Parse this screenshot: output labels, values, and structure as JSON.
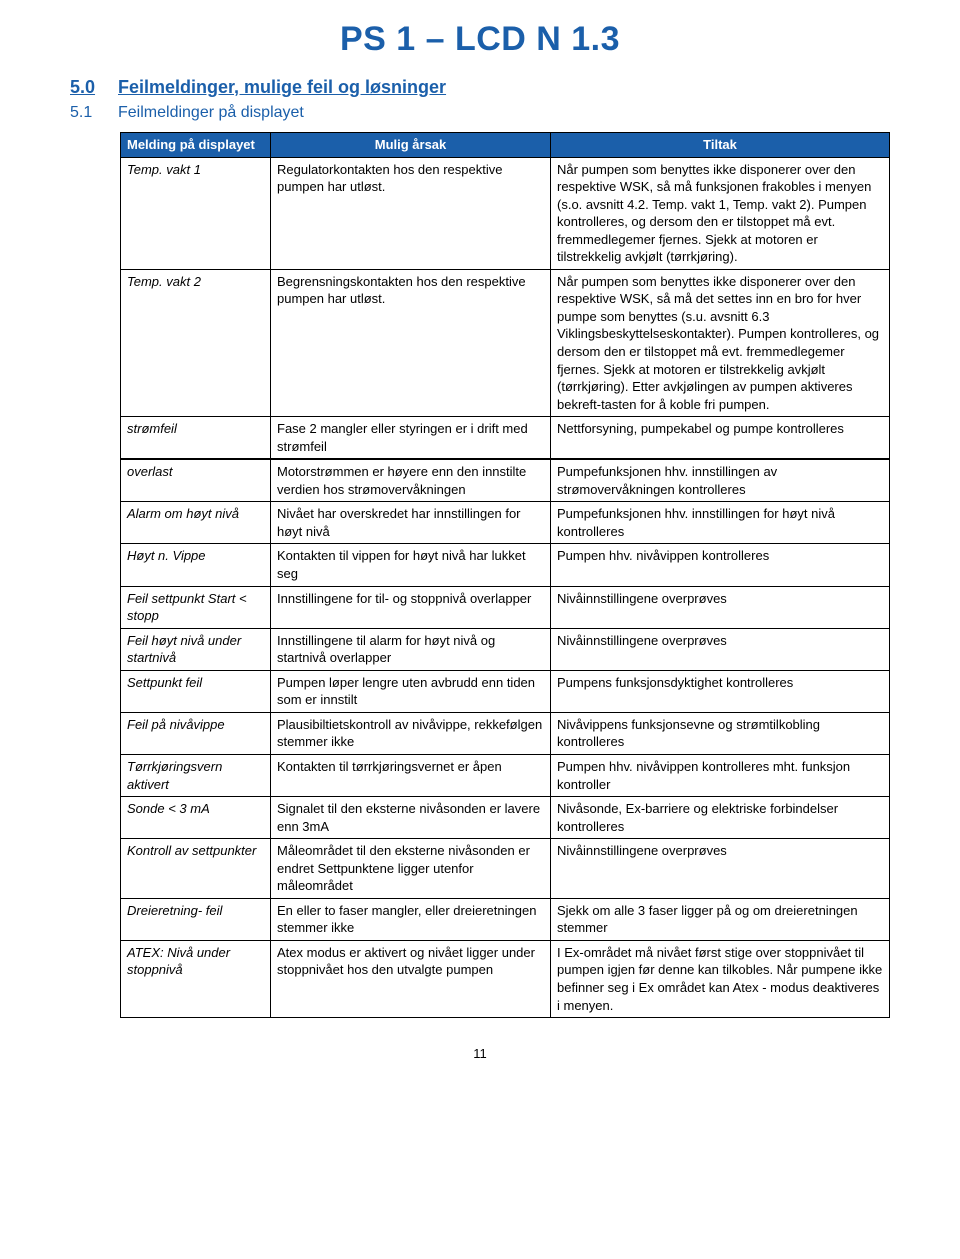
{
  "title": "PS 1 – LCD N  1.3",
  "section": {
    "num": "5.0",
    "text": "Feilmeldinger, mulige feil og løsninger"
  },
  "subsection": {
    "num": "5.1",
    "text": "Feilmeldinger på displayet"
  },
  "columns": {
    "melding": "Melding på displayet",
    "arsak": "Mulig årsak",
    "tiltak": "Tiltak"
  },
  "rows": [
    {
      "m": "Temp. vakt 1",
      "a": "Regulatorkontakten hos den respektive pumpen har utløst.",
      "t": "Når pumpen som benyttes ikke disponerer over den respektive WSK, så må funksjonen frakobles i menyen (s.o. avsnitt 4.2. Temp. vakt 1, Temp. vakt 2).\nPumpen kontrolleres, og dersom den er tilstoppet må evt. fremmedlegemer fjernes. Sjekk at motoren er tilstrekkelig avkjølt (tørrkjøring)."
    },
    {
      "m": "Temp. vakt 2",
      "a": "Begrensningskontakten hos den respektive pumpen har utløst.",
      "t": "Når pumpen som benyttes ikke disponerer over den respektive WSK, så må det settes inn en bro for hver pumpe som benyttes (s.u. avsnitt 6.3 Viklingsbeskyttelseskontakter). Pumpen kontrolleres, og dersom den er tilstoppet må evt. fremmedlegemer fjernes. Sjekk at motoren er tilstrekkelig avkjølt (tørrkjøring).\nEtter avkjølingen av pumpen aktiveres bekreft-tasten for å koble fri pumpen."
    },
    {
      "m": "strømfeil",
      "a": "Fase 2 mangler eller styringen er i drift med strømfeil",
      "t": "Nettforsyning, pumpekabel og pumpe kontrolleres"
    },
    {
      "m": "overlast",
      "a": "Motorstrømmen er høyere enn den innstilte verdien hos strømovervåkningen",
      "t": "Pumpefunksjonen hhv. innstillingen av strømovervåkningen kontrolleres",
      "break": true
    },
    {
      "m": "Alarm om høyt nivå",
      "a": "Nivået har overskredet har innstillingen for høyt nivå",
      "t": "Pumpefunksjonen hhv. innstillingen for høyt nivå kontrolleres"
    },
    {
      "m": "Høyt n. Vippe",
      "a": "Kontakten til vippen for høyt nivå har lukket seg",
      "t": "Pumpen hhv. nivåvippen kontrolleres"
    },
    {
      "m": "Feil settpunkt Start < stopp",
      "a": "Innstillingene for til- og stoppnivå overlapper",
      "t": "Nivåinnstillingene overprøves"
    },
    {
      "m": "Feil høyt nivå under startnivå",
      "a": "Innstillingene til alarm for høyt nivå og startnivå overlapper",
      "t": "Nivåinnstillingene overprøves"
    },
    {
      "m": "Settpunkt feil",
      "a": "Pumpen løper lengre uten avbrudd enn tiden som er innstilt",
      "t": "Pumpens funksjonsdyktighet kontrolleres"
    },
    {
      "m": "Feil på nivåvippe",
      "a": "Plausibiltietskontroll av nivåvippe, rekkefølgen stemmer ikke",
      "t": "Nivåvippens funksjonsevne og strømtilkobling kontrolleres"
    },
    {
      "m": "Tørrkjøringsvern aktivert",
      "a": "Kontakten til tørrkjøringsvernet er åpen",
      "t": "Pumpen hhv. nivåvippen kontrolleres mht. funksjon\nkontroller"
    },
    {
      "m": "Sonde < 3 mA",
      "a": "Signalet til den eksterne nivåsonden er lavere enn 3mA",
      "t": "Nivåsonde, Ex-barriere og elektriske forbindelser kontrolleres"
    },
    {
      "m": "Kontroll av settpunkter",
      "a": "Måleområdet til den eksterne nivåsonden er endret Settpunktene ligger utenfor måleområdet",
      "t": "Nivåinnstillingene overprøves"
    },
    {
      "m": "Dreieretning- feil",
      "a": "En eller to faser mangler,\neller dreieretningen stemmer ikke",
      "t": "Sjekk om alle 3 faser ligger på og om dreieretningen stemmer"
    },
    {
      "m": "ATEX: Nivå under stoppnivå",
      "a": "Atex modus er aktivert og nivået ligger under stoppnivået hos den utvalgte pumpen",
      "t": "I Ex-området må nivået først stige over stoppnivået til pumpen igjen før denne kan tilkobles.\nNår pumpene ikke befinner seg i Ex området kan Atex - modus deaktiveres i menyen."
    }
  ],
  "page_number": "11",
  "colors": {
    "brand": "#1b5faa",
    "text": "#000000",
    "bg": "#ffffff",
    "border": "#000000"
  }
}
